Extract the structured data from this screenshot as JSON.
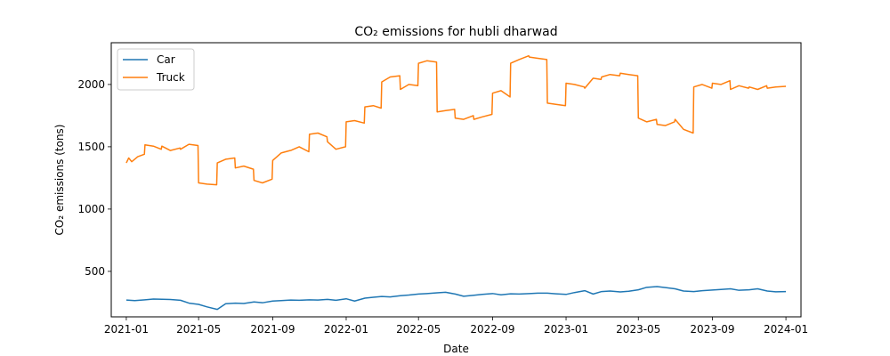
{
  "chart_data": {
    "type": "line",
    "title": "CO₂ emissions for hubli dharwad",
    "xlabel": "Date",
    "ylabel": "CO₂ emissions (tons)",
    "xlim": [
      "2020-12-07",
      "2024-01-26"
    ],
    "ylim": [
      135,
      2335
    ],
    "grid": false,
    "legend_position": "top-left",
    "x_ticks": [
      "2021-01",
      "2021-05",
      "2021-09",
      "2022-01",
      "2022-05",
      "2022-09",
      "2023-01",
      "2023-05",
      "2023-09",
      "2024-01"
    ],
    "x_tick_dates": [
      "2021-01-01",
      "2021-05-01",
      "2021-09-01",
      "2022-01-01",
      "2022-05-01",
      "2022-09-01",
      "2023-01-01",
      "2023-05-01",
      "2023-09-01",
      "2024-01-01"
    ],
    "y_ticks": [
      500,
      1000,
      1500,
      2000
    ],
    "series": [
      {
        "name": "Car",
        "color": "#1f77b4",
        "x": [
          "2021-01-01",
          "2021-01-15",
          "2021-02-01",
          "2021-02-15",
          "2021-03-01",
          "2021-03-15",
          "2021-04-01",
          "2021-04-15",
          "2021-05-01",
          "2021-05-15",
          "2021-06-01",
          "2021-06-15",
          "2021-07-01",
          "2021-07-15",
          "2021-08-01",
          "2021-08-15",
          "2021-09-01",
          "2021-09-15",
          "2021-10-01",
          "2021-10-15",
          "2021-11-01",
          "2021-11-15",
          "2021-12-01",
          "2021-12-15",
          "2022-01-01",
          "2022-01-15",
          "2022-02-01",
          "2022-02-15",
          "2022-03-01",
          "2022-03-15",
          "2022-04-01",
          "2022-04-15",
          "2022-05-01",
          "2022-05-15",
          "2022-06-01",
          "2022-06-15",
          "2022-07-01",
          "2022-07-15",
          "2022-08-01",
          "2022-08-15",
          "2022-09-01",
          "2022-09-15",
          "2022-10-01",
          "2022-10-15",
          "2022-11-01",
          "2022-11-15",
          "2022-12-01",
          "2022-12-15",
          "2023-01-01",
          "2023-01-15",
          "2023-02-01",
          "2023-02-15",
          "2023-03-01",
          "2023-03-15",
          "2023-04-01",
          "2023-04-15",
          "2023-05-01",
          "2023-05-15",
          "2023-06-01",
          "2023-06-15",
          "2023-07-01",
          "2023-07-15",
          "2023-08-01",
          "2023-08-15",
          "2023-09-01",
          "2023-09-15",
          "2023-10-01",
          "2023-10-15",
          "2023-11-01",
          "2023-11-15",
          "2023-12-01",
          "2023-12-15",
          "2024-01-01"
        ],
        "values": [
          270,
          265,
          272,
          278,
          276,
          274,
          268,
          245,
          235,
          215,
          195,
          240,
          245,
          242,
          255,
          248,
          262,
          265,
          270,
          268,
          272,
          270,
          275,
          268,
          280,
          262,
          285,
          292,
          298,
          295,
          305,
          310,
          318,
          322,
          328,
          332,
          318,
          300,
          308,
          315,
          322,
          312,
          320,
          318,
          322,
          325,
          325,
          320,
          315,
          330,
          345,
          318,
          338,
          342,
          335,
          340,
          352,
          372,
          378,
          370,
          360,
          342,
          338,
          345,
          350,
          355,
          360,
          348,
          352,
          360,
          342,
          336,
          338
        ]
      },
      {
        "name": "Truck",
        "color": "#ff7f0e",
        "x": [
          "2021-01-01",
          "2021-01-05",
          "2021-01-10",
          "2021-01-20",
          "2021-01-31",
          "2021-02-01",
          "2021-02-15",
          "2021-02-28",
          "2021-03-01",
          "2021-03-15",
          "2021-03-31",
          "2021-04-01",
          "2021-04-15",
          "2021-04-30",
          "2021-05-01",
          "2021-05-15",
          "2021-05-31",
          "2021-06-01",
          "2021-06-15",
          "2021-06-30",
          "2021-07-01",
          "2021-07-15",
          "2021-07-31",
          "2021-08-01",
          "2021-08-15",
          "2021-08-31",
          "2021-09-01",
          "2021-09-15",
          "2021-09-30",
          "2021-10-01",
          "2021-10-15",
          "2021-10-31",
          "2021-11-01",
          "2021-11-15",
          "2021-11-30",
          "2021-12-01",
          "2021-12-15",
          "2021-12-31",
          "2022-01-01",
          "2022-01-15",
          "2022-01-31",
          "2022-02-01",
          "2022-02-15",
          "2022-02-28",
          "2022-03-01",
          "2022-03-15",
          "2022-03-31",
          "2022-04-01",
          "2022-04-15",
          "2022-04-30",
          "2022-05-01",
          "2022-05-15",
          "2022-05-31",
          "2022-06-01",
          "2022-06-15",
          "2022-06-30",
          "2022-07-01",
          "2022-07-15",
          "2022-07-31",
          "2022-08-01",
          "2022-08-15",
          "2022-08-31",
          "2022-09-01",
          "2022-09-15",
          "2022-09-30",
          "2022-10-01",
          "2022-10-15",
          "2022-10-31",
          "2022-11-01",
          "2022-11-15",
          "2022-11-30",
          "2022-12-01",
          "2022-12-15",
          "2022-12-31",
          "2023-01-01",
          "2023-01-15",
          "2023-01-31",
          "2023-02-01",
          "2023-02-15",
          "2023-02-28",
          "2023-03-01",
          "2023-03-15",
          "2023-03-31",
          "2023-04-01",
          "2023-04-15",
          "2023-04-30",
          "2023-05-01",
          "2023-05-15",
          "2023-05-31",
          "2023-06-01",
          "2023-06-15",
          "2023-06-30",
          "2023-07-01",
          "2023-07-15",
          "2023-07-31",
          "2023-08-01",
          "2023-08-15",
          "2023-08-31",
          "2023-09-01",
          "2023-09-15",
          "2023-09-30",
          "2023-10-01",
          "2023-10-15",
          "2023-10-31",
          "2023-11-01",
          "2023-11-15",
          "2023-11-30",
          "2023-12-01",
          "2023-12-15",
          "2024-01-01"
        ],
        "values": [
          1370,
          1410,
          1380,
          1420,
          1440,
          1515,
          1505,
          1480,
          1505,
          1470,
          1490,
          1480,
          1520,
          1510,
          1210,
          1200,
          1195,
          1370,
          1400,
          1410,
          1330,
          1345,
          1320,
          1230,
          1210,
          1240,
          1390,
          1450,
          1470,
          1470,
          1500,
          1460,
          1600,
          1610,
          1580,
          1540,
          1480,
          1500,
          1700,
          1710,
          1690,
          1820,
          1830,
          1810,
          2020,
          2060,
          2070,
          1960,
          2000,
          1990,
          2170,
          2190,
          2180,
          1780,
          1790,
          1800,
          1730,
          1720,
          1750,
          1720,
          1740,
          1760,
          1930,
          1950,
          1900,
          2170,
          2200,
          2230,
          2220,
          2210,
          2200,
          1850,
          1840,
          1830,
          2010,
          2000,
          1980,
          1970,
          2050,
          2040,
          2060,
          2080,
          2070,
          2090,
          2080,
          2070,
          1730,
          1700,
          1720,
          1680,
          1670,
          1700,
          1720,
          1640,
          1610,
          1980,
          2000,
          1970,
          2010,
          2000,
          2030,
          1960,
          1990,
          1970,
          1980,
          1960,
          1990,
          1970,
          1980,
          1985
        ]
      }
    ]
  }
}
